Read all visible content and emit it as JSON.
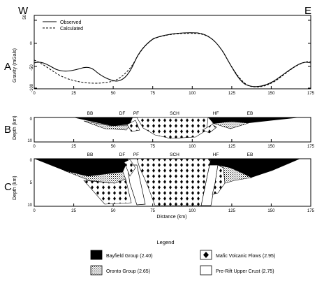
{
  "compass": {
    "west": "W",
    "east": "E"
  },
  "panels": {
    "a": {
      "letter": "A",
      "ylabel": "Gravity (mGals)",
      "yticks": [
        "50",
        "0",
        "-50",
        "-100"
      ],
      "xticks": [
        "0",
        "25",
        "50",
        "75",
        "100",
        "125",
        "150",
        "175"
      ],
      "legend": {
        "observed": "Observed",
        "calculated": "Calculated"
      }
    },
    "b": {
      "letter": "B",
      "ylabel": "Depth (km)",
      "yticks": [
        "0",
        "10"
      ],
      "xticks": [
        "0",
        "25",
        "50",
        "75",
        "100",
        "125",
        "150",
        "175"
      ],
      "labels": [
        "BB",
        "DF",
        "PF",
        "SCH",
        "HF",
        "EB"
      ]
    },
    "c": {
      "letter": "C",
      "ylabel": "Depth (km)",
      "yticks": [
        "0",
        "5",
        "10"
      ],
      "xticks": [
        "0",
        "25",
        "50",
        "75",
        "100",
        "125",
        "150",
        "175"
      ],
      "labels": [
        "BB",
        "DF",
        "PF",
        "SCH",
        "HF",
        "EB"
      ],
      "xlabel": "Distance (km)"
    }
  },
  "legend": {
    "title": "Legend",
    "items": [
      {
        "label": "Bayfield Group (2.40)",
        "pattern": "solid-black"
      },
      {
        "label": "Oronto Group (2.65)",
        "pattern": "stipple"
      },
      {
        "label": "Mafic Volcanic Flows (2.95)",
        "pattern": "diamonds"
      },
      {
        "label": "Pre-Rift Upper Crust (2.75)",
        "pattern": "blank"
      }
    ]
  }
}
